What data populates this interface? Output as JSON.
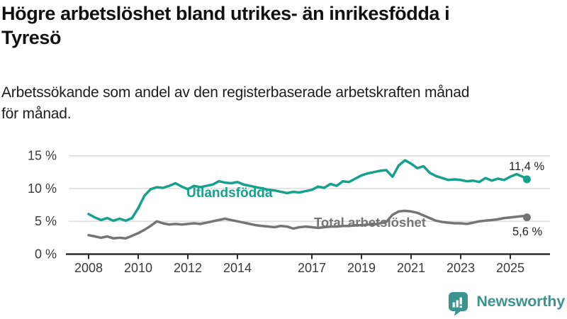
{
  "header": {
    "title_lines": [
      "Högre arbetslöshet bland utrikes- än inrikesfödda i",
      "Tyresö"
    ],
    "subtitle_lines": [
      "Arbetssökande som andel av den registerbaserade arbetskraften månad",
      "för månad."
    ]
  },
  "footer": {
    "brand": "Newsworthy",
    "brand_text_color": "#3d938d",
    "logo_icon": "bar-chart-speech-bubble-icon",
    "logo_color": "#3d938d"
  },
  "chart_data": {
    "type": "line",
    "title": "Högre arbetslöshet bland utrikes- än inrikesfödda i Tyresö",
    "subtitle": "Arbetssökande som andel av den registerbaserade arbetskraften månad för månad.",
    "x_unit": "year (decimal, monthly series)",
    "grid": true,
    "legend": "inline-labels",
    "ylim": [
      0,
      15.5
    ],
    "xlim": [
      2007.2,
      2026.6
    ],
    "axis_color": "#2d2d2d",
    "gridline_color": "#d9d9d9",
    "tick_text_color": "#3a3a3a",
    "annotation_text_color": "#222222",
    "y_ticks": [
      {
        "v": 0,
        "label": "0 %"
      },
      {
        "v": 5,
        "label": "5 %"
      },
      {
        "v": 10,
        "label": "10 %"
      },
      {
        "v": 15,
        "label": "15 %"
      }
    ],
    "x_ticks": [
      {
        "v": 2008,
        "label": "2008"
      },
      {
        "v": 2010,
        "label": "2010"
      },
      {
        "v": 2012,
        "label": "2012"
      },
      {
        "v": 2014,
        "label": "2014"
      },
      {
        "v": 2017,
        "label": "2017"
      },
      {
        "v": 2019,
        "label": "2019"
      },
      {
        "v": 2021,
        "label": "2021"
      },
      {
        "v": 2023,
        "label": "2023"
      },
      {
        "v": 2025,
        "label": "2025"
      }
    ],
    "x": [
      2008.0,
      2008.25,
      2008.5,
      2008.75,
      2009.0,
      2009.25,
      2009.5,
      2009.75,
      2010.0,
      2010.25,
      2010.5,
      2010.75,
      2011.0,
      2011.25,
      2011.5,
      2011.75,
      2012.0,
      2012.25,
      2012.5,
      2012.75,
      2013.0,
      2013.25,
      2013.5,
      2013.75,
      2014.0,
      2014.25,
      2014.5,
      2014.75,
      2015.0,
      2015.25,
      2015.5,
      2015.75,
      2016.0,
      2016.25,
      2016.5,
      2016.75,
      2017.0,
      2017.25,
      2017.5,
      2017.75,
      2018.0,
      2018.25,
      2018.5,
      2018.75,
      2019.0,
      2019.25,
      2019.5,
      2019.75,
      2020.0,
      2020.25,
      2020.5,
      2020.75,
      2021.0,
      2021.25,
      2021.5,
      2021.75,
      2022.0,
      2022.25,
      2022.5,
      2022.75,
      2023.0,
      2023.25,
      2023.5,
      2023.75,
      2024.0,
      2024.25,
      2024.5,
      2024.75,
      2025.0,
      2025.25,
      2025.5,
      2025.67
    ],
    "series": [
      {
        "name": "Utlandsfödda",
        "color": "#16a18c",
        "end_label": "11,4 %",
        "end_value": 11.4,
        "values": [
          6.1,
          5.6,
          5.2,
          5.5,
          5.1,
          5.4,
          5.1,
          5.5,
          7.0,
          8.9,
          9.9,
          10.2,
          10.1,
          10.4,
          10.8,
          10.3,
          9.9,
          10.4,
          10.2,
          10.4,
          10.6,
          11.1,
          10.9,
          10.8,
          11.0,
          10.6,
          10.4,
          10.2,
          10.0,
          9.8,
          9.7,
          9.5,
          9.3,
          9.5,
          9.4,
          9.6,
          9.8,
          10.3,
          10.1,
          10.7,
          10.4,
          11.1,
          11.0,
          11.5,
          12.0,
          12.3,
          12.5,
          12.7,
          12.8,
          11.8,
          13.5,
          14.3,
          13.8,
          13.1,
          13.4,
          12.4,
          11.9,
          11.6,
          11.3,
          11.4,
          11.3,
          11.1,
          11.2,
          11.0,
          11.6,
          11.2,
          11.5,
          11.3,
          11.8,
          12.2,
          11.8,
          11.4
        ]
      },
      {
        "name": "Total arbetslöshet",
        "color": "#757575",
        "end_label": "5,6 %",
        "end_value": 5.6,
        "values": [
          2.9,
          2.7,
          2.5,
          2.7,
          2.4,
          2.5,
          2.4,
          2.8,
          3.2,
          3.7,
          4.3,
          5.0,
          4.7,
          4.5,
          4.6,
          4.5,
          4.6,
          4.7,
          4.6,
          4.8,
          5.0,
          5.2,
          5.4,
          5.2,
          5.0,
          4.8,
          4.6,
          4.4,
          4.3,
          4.2,
          4.1,
          4.3,
          4.2,
          3.9,
          4.1,
          4.2,
          4.1,
          4.0,
          4.1,
          4.2,
          4.2,
          4.3,
          4.3,
          4.4,
          4.4,
          4.5,
          4.5,
          4.7,
          4.9,
          6.0,
          6.5,
          6.6,
          6.5,
          6.3,
          5.9,
          5.5,
          5.1,
          4.9,
          4.8,
          4.7,
          4.7,
          4.6,
          4.8,
          5.0,
          5.1,
          5.2,
          5.3,
          5.5,
          5.6,
          5.7,
          5.8,
          5.6
        ]
      }
    ]
  }
}
